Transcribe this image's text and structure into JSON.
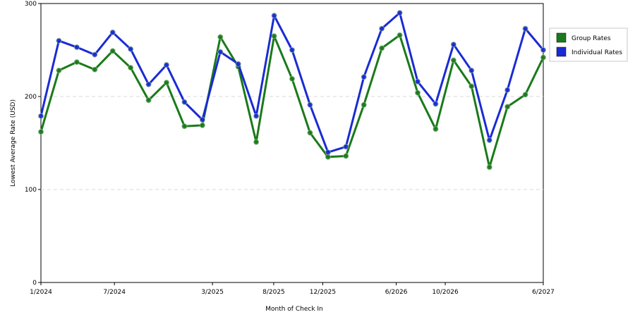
{
  "chart_data": {
    "type": "line",
    "xlabel": "Month of Check In",
    "ylabel": "Lowest Average Rate (USD)",
    "ylim": [
      0,
      300
    ],
    "yticks": [
      0,
      100,
      200,
      300
    ],
    "grid": true,
    "legend_placement": "right",
    "x_tick_labels": [
      {
        "index": 0,
        "label": "1/2024"
      },
      {
        "index": 6,
        "label": "7/2024"
      },
      {
        "index": 14,
        "label": "3/2025"
      },
      {
        "index": 19,
        "label": "8/2025"
      },
      {
        "index": 23,
        "label": "12/2025"
      },
      {
        "index": 29,
        "label": "6/2026"
      },
      {
        "index": 33,
        "label": "10/2026"
      },
      {
        "index": 41,
        "label": "6/2027"
      }
    ],
    "x_count": 42,
    "series": [
      {
        "name": "Group Rates",
        "color": "#1a7a1a",
        "points": [
          {
            "i": 0,
            "v": 162
          },
          {
            "i": 1,
            "v": 228
          },
          {
            "i": 2,
            "v": 237
          },
          {
            "i": 3,
            "v": 229
          },
          {
            "i": 4,
            "v": 249
          },
          {
            "i": 5,
            "v": 231
          },
          {
            "i": 6,
            "v": 196
          },
          {
            "i": 7,
            "v": 215
          },
          {
            "i": 8,
            "v": 168
          },
          {
            "i": 9,
            "v": 169
          },
          {
            "i": 10,
            "v": 264
          },
          {
            "i": 11,
            "v": 232
          },
          {
            "i": 12,
            "v": 151
          },
          {
            "i": 13,
            "v": 265
          },
          {
            "i": 14,
            "v": 219
          },
          {
            "i": 15,
            "v": 161
          },
          {
            "i": 16,
            "v": 135
          },
          {
            "i": 17,
            "v": 136
          },
          {
            "i": 18,
            "v": 191
          },
          {
            "i": 19,
            "v": 252
          },
          {
            "i": 20,
            "v": 266
          },
          {
            "i": 21,
            "v": 204
          },
          {
            "i": 22,
            "v": 165
          },
          {
            "i": 23,
            "v": 239
          },
          {
            "i": 24,
            "v": 211
          },
          {
            "i": 25,
            "v": 124
          },
          {
            "i": 26,
            "v": 189
          },
          {
            "i": 27,
            "v": 202
          },
          {
            "i": 28,
            "v": 242
          }
        ]
      },
      {
        "name": "Individual Rates",
        "color": "#1a2bd4",
        "points": [
          {
            "i": 0,
            "v": 179
          },
          {
            "i": 1,
            "v": 260
          },
          {
            "i": 2,
            "v": 253
          },
          {
            "i": 3,
            "v": 245
          },
          {
            "i": 4,
            "v": 269
          },
          {
            "i": 5,
            "v": 251
          },
          {
            "i": 6,
            "v": 213
          },
          {
            "i": 7,
            "v": 234
          },
          {
            "i": 8,
            "v": 194
          },
          {
            "i": 9,
            "v": 175
          },
          {
            "i": 10,
            "v": 248
          },
          {
            "i": 11,
            "v": 235
          },
          {
            "i": 12,
            "v": 179
          },
          {
            "i": 13,
            "v": 287
          },
          {
            "i": 14,
            "v": 250
          },
          {
            "i": 15,
            "v": 191
          },
          {
            "i": 16,
            "v": 140
          },
          {
            "i": 17,
            "v": 146
          },
          {
            "i": 18,
            "v": 221
          },
          {
            "i": 19,
            "v": 273
          },
          {
            "i": 20,
            "v": 290
          },
          {
            "i": 21,
            "v": 216
          },
          {
            "i": 22,
            "v": 192
          },
          {
            "i": 23,
            "v": 256
          },
          {
            "i": 24,
            "v": 228
          },
          {
            "i": 25,
            "v": 153
          },
          {
            "i": 26,
            "v": 207
          },
          {
            "i": 27,
            "v": 273
          },
          {
            "i": 28,
            "v": 250
          }
        ]
      }
    ]
  }
}
